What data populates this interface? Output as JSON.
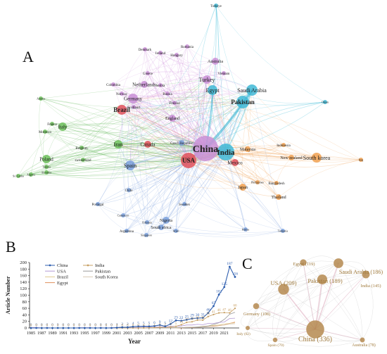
{
  "panels": {
    "a": "A",
    "b": "B",
    "c": "C"
  },
  "network_a": {
    "nodes": [
      {
        "id": "Turkiye",
        "label": "Turkiye",
        "cluster": "cyan"
      },
      {
        "id": "Romania",
        "label": "Romania",
        "cluster": "purple"
      },
      {
        "id": "Denmark",
        "label": "Denmark",
        "cluster": "purple"
      },
      {
        "id": "Ireland",
        "label": "Ireland",
        "cluster": "purple"
      },
      {
        "id": "Hungary",
        "label": "Hungary",
        "cluster": "purple"
      },
      {
        "id": "Australia",
        "label": "Australia",
        "cluster": "purple"
      },
      {
        "id": "Turkey",
        "label": "Turkey",
        "cluster": "purple"
      },
      {
        "id": "Vietnam",
        "label": "Vietnam",
        "cluster": "purple"
      },
      {
        "id": "Greece",
        "label": "Greece",
        "cluster": "purple"
      },
      {
        "id": "Saudi Arabia",
        "label": "Saudi Arabia",
        "cluster": "cyan"
      },
      {
        "id": "Colombia",
        "label": "Colombia",
        "cluster": "purple"
      },
      {
        "id": "Netherlands",
        "label": "Netherlands",
        "cluster": "purple"
      },
      {
        "id": "Serbia",
        "label": "Serbia",
        "cluster": "purple"
      },
      {
        "id": "Egypt",
        "label": "Egypt",
        "cluster": "cyan"
      },
      {
        "id": "Norway",
        "label": "Norway",
        "cluster": "purple"
      },
      {
        "id": "Austria",
        "label": "Austria",
        "cluster": "green"
      },
      {
        "id": "Germany",
        "label": "Germany",
        "cluster": "purple"
      },
      {
        "id": "Russia",
        "label": "Russia",
        "cluster": "purple"
      },
      {
        "id": "Scotland",
        "label": "Scotland",
        "cluster": "purple"
      },
      {
        "id": "Finland",
        "label": "Finland",
        "cluster": "purple"
      },
      {
        "id": "Pakistan",
        "label": "Pakistan",
        "cluster": "cyan"
      },
      {
        "id": "Oman",
        "label": "Oman",
        "cluster": "cyan"
      },
      {
        "id": "Brazil",
        "label": "Brazil",
        "cluster": "red"
      },
      {
        "id": "England",
        "label": "England",
        "cluster": "purple"
      },
      {
        "id": "Italy",
        "label": "Italy",
        "cluster": "green"
      },
      {
        "id": "France",
        "label": "France",
        "cluster": "green"
      },
      {
        "id": "Morocco",
        "label": "Morocco",
        "cluster": "green"
      },
      {
        "id": "Iran",
        "label": "Iran",
        "cluster": "green"
      },
      {
        "id": "Canada",
        "label": "Canada",
        "cluster": "red"
      },
      {
        "id": "Czech Republic",
        "label": "Czech Republic",
        "cluster": "blue"
      },
      {
        "id": "China",
        "label": "China",
        "cluster": "purple"
      },
      {
        "id": "India",
        "label": "India",
        "cluster": "cyan"
      },
      {
        "id": "Malaysia",
        "label": "Malaysia",
        "cluster": "orange"
      },
      {
        "id": "Indonesia",
        "label": "Indonesia",
        "cluster": "orange"
      },
      {
        "id": "Belgium",
        "label": "Belgium",
        "cluster": "green"
      },
      {
        "id": "Switzerland",
        "label": "switzerland",
        "cluster": "green"
      },
      {
        "id": "New zealand",
        "label": "New zealand",
        "cluster": "orange"
      },
      {
        "id": "South korea",
        "label": "South korea",
        "cluster": "orange"
      },
      {
        "id": "Iraq",
        "label": "Iraq",
        "cluster": "orange"
      },
      {
        "id": "Poland",
        "label": "Poland",
        "cluster": "green"
      },
      {
        "id": "Tunisia",
        "label": "Tunisia",
        "cluster": "green"
      },
      {
        "id": "Slovakia",
        "label": "Slovakia",
        "cluster": "green"
      },
      {
        "id": "Algeria",
        "label": "Algeria",
        "cluster": "green"
      },
      {
        "id": "Sri Lanka",
        "label": "Sri Lanka",
        "cluster": "green"
      },
      {
        "id": "Spain",
        "label": "Spain",
        "cluster": "blue"
      },
      {
        "id": "USA",
        "label": "USA",
        "cluster": "red"
      },
      {
        "id": "Mexico",
        "label": "Mexico",
        "cluster": "red"
      },
      {
        "id": "Chile",
        "label": "Chile",
        "cluster": "blue"
      },
      {
        "id": "Philippines",
        "label": "Philippines",
        "cluster": "orange"
      },
      {
        "id": "Bangladesh",
        "label": "Bangladesh",
        "cluster": "orange"
      },
      {
        "id": "Japan",
        "label": "Japan",
        "cluster": "orange"
      },
      {
        "id": "Thailand",
        "label": "Thailand",
        "cluster": "orange"
      },
      {
        "id": "Portugal",
        "label": "Portugal",
        "cluster": "blue"
      },
      {
        "id": "Sweden",
        "label": "Sweden",
        "cluster": "blue"
      },
      {
        "id": "Cameroon",
        "label": "Cameroon",
        "cluster": "blue"
      },
      {
        "id": "Nigeria",
        "label": "Nigeria",
        "cluster": "blue"
      },
      {
        "id": "Ethiopia",
        "label": "Ethiopia",
        "cluster": "blue"
      },
      {
        "id": "South africa",
        "label": "South africa",
        "cluster": "blue"
      },
      {
        "id": "Argentina",
        "label": "Argentina",
        "cluster": "blue"
      },
      {
        "id": "Singapore",
        "label": "Singapore",
        "cluster": "blue"
      },
      {
        "id": "Israel",
        "label": "Israel",
        "cluster": "blue"
      },
      {
        "id": "Kenya",
        "label": "Kenya",
        "cluster": "blue"
      },
      {
        "id": "Tanzania",
        "label": "Tanzania",
        "cluster": "blue"
      }
    ]
  },
  "chart_data": {
    "type": "line",
    "xlabel": "Year",
    "ylabel": "Article Number",
    "ylim": [
      0,
      200
    ],
    "yticks": [
      0,
      20,
      40,
      60,
      80,
      100,
      120,
      140,
      160,
      180,
      200
    ],
    "x": [
      "1985",
      "1986",
      "1987",
      "1988",
      "1989",
      "1990",
      "1991",
      "1992",
      "1993",
      "1994",
      "1995",
      "1996",
      "1997",
      "1998",
      "1999",
      "2000",
      "2001",
      "2002",
      "2003",
      "2004",
      "2005",
      "2006",
      "2007",
      "2008",
      "2009",
      "2010",
      "2011",
      "2012",
      "2013",
      "2014",
      "2015",
      "2016",
      "2017",
      "2018",
      "2019",
      "2020",
      "2021",
      "2022",
      "2023"
    ],
    "xtick_labels": [
      "1985",
      "1987",
      "1989",
      "1991",
      "1993",
      "1995",
      "1997",
      "1999",
      "2001",
      "2003",
      "2005",
      "2007",
      "2009",
      "2011",
      "2013",
      "2015",
      "2017",
      "2019",
      "2021"
    ],
    "legend": [
      {
        "name": "China",
        "color": "#2f5faf"
      },
      {
        "name": "India",
        "color": "#c8a064"
      },
      {
        "name": "USA",
        "color": "#b39ad4"
      },
      {
        "name": "Pakistan",
        "color": "#9a9a9a"
      },
      {
        "name": "Brazil",
        "color": "#e0c890"
      },
      {
        "name": "South Korea",
        "color": "#d9c8b4"
      },
      {
        "name": "Egypt",
        "color": "#e0905c"
      }
    ],
    "series": [
      {
        "name": "China",
        "color": "#2f5faf",
        "values": [
          0,
          0,
          0,
          0,
          0,
          0,
          0,
          0,
          0,
          0,
          0,
          0,
          0,
          0,
          0,
          0,
          1,
          2,
          2,
          4,
          5,
          5,
          5,
          6,
          9,
          5,
          12,
          23,
          22,
          25,
          29,
          30,
          31,
          46,
          67,
          102,
          125,
          187,
          156
        ],
        "labels": [
          "0",
          "0",
          "0",
          "0",
          "0",
          "0",
          "0",
          "0",
          "0",
          "0",
          "0",
          "0",
          "0",
          "0",
          "0",
          "0",
          "1",
          "2",
          "2",
          "4",
          "5",
          "5",
          "5",
          "6",
          "9",
          "5",
          "12",
          "23",
          "22",
          "25",
          "29",
          "30",
          "31",
          "46",
          "67",
          "102",
          "125",
          "187",
          "156"
        ]
      },
      {
        "name": "India",
        "color": "#c8a064",
        "values": [
          0,
          0,
          0,
          0,
          0,
          0,
          0,
          0,
          0,
          0,
          0,
          0,
          0,
          0,
          0,
          0,
          0,
          0,
          0,
          0,
          0,
          0,
          1,
          1,
          2,
          2,
          3,
          5,
          10,
          17,
          19,
          24,
          24,
          35,
          41,
          46,
          47,
          46,
          60
        ]
      },
      {
        "name": "USA",
        "color": "#b39ad4",
        "values": [
          1,
          2,
          0,
          1,
          0,
          0,
          0,
          0,
          0,
          1,
          1,
          1,
          0,
          1,
          0,
          1,
          1,
          3,
          1,
          1,
          2,
          3,
          3,
          2,
          4,
          3,
          5,
          5,
          6,
          9,
          9,
          11,
          10,
          14,
          14,
          17,
          18,
          29,
          30
        ]
      },
      {
        "name": "Pakistan",
        "color": "#9a9a9a",
        "values": [
          0,
          0,
          0,
          0,
          0,
          0,
          0,
          0,
          0,
          0,
          0,
          0,
          0,
          0,
          0,
          0,
          0,
          0,
          0,
          0,
          0,
          0,
          0,
          0,
          0,
          0,
          0,
          1,
          1,
          2,
          2,
          3,
          4,
          6,
          11,
          16,
          26,
          42,
          48
        ]
      },
      {
        "name": "Brazil",
        "color": "#e0c890",
        "values": [
          0,
          0,
          0,
          0,
          0,
          0,
          0,
          0,
          0,
          0,
          0,
          0,
          0,
          0,
          0,
          0,
          0,
          0,
          0,
          0,
          0,
          0,
          0,
          0,
          0,
          0,
          1,
          1,
          1,
          2,
          2,
          3,
          5,
          6,
          8,
          9,
          12,
          14,
          16
        ]
      },
      {
        "name": "South Korea",
        "color": "#d9c8b4",
        "values": [
          0,
          0,
          0,
          0,
          0,
          0,
          0,
          0,
          0,
          0,
          0,
          0,
          0,
          0,
          0,
          0,
          0,
          0,
          0,
          0,
          0,
          0,
          0,
          0,
          0,
          0,
          0,
          0,
          1,
          1,
          2,
          2,
          3,
          4,
          6,
          8,
          9,
          12,
          13
        ]
      },
      {
        "name": "Egypt",
        "color": "#e0905c",
        "values": [
          0,
          0,
          0,
          0,
          0,
          0,
          0,
          0,
          0,
          0,
          0,
          0,
          0,
          0,
          0,
          0,
          0,
          0,
          0,
          0,
          0,
          0,
          0,
          0,
          0,
          0,
          0,
          0,
          0,
          1,
          1,
          2,
          3,
          4,
          5,
          7,
          9,
          14,
          18
        ]
      }
    ]
  },
  "network_c": {
    "nodes": [
      {
        "id": "china",
        "label": "China (336)",
        "weight": 336
      },
      {
        "id": "usa",
        "label": "USA (209)",
        "weight": 209
      },
      {
        "id": "pakistan",
        "label": "Pakistan (189)",
        "weight": 189
      },
      {
        "id": "saudi",
        "label": "Saudi Arabia (186)",
        "weight": 186
      },
      {
        "id": "india",
        "label": "India (145)",
        "weight": 145
      },
      {
        "id": "egypt",
        "label": "Egypt (119)",
        "weight": 119
      },
      {
        "id": "germany",
        "label": "Germany (108)",
        "weight": 108
      },
      {
        "id": "australia",
        "label": "Australia (78)",
        "weight": 78
      },
      {
        "id": "spain",
        "label": "Spain (70)",
        "weight": 70
      },
      {
        "id": "italy",
        "label": "Italy (62)",
        "weight": 62
      }
    ]
  }
}
